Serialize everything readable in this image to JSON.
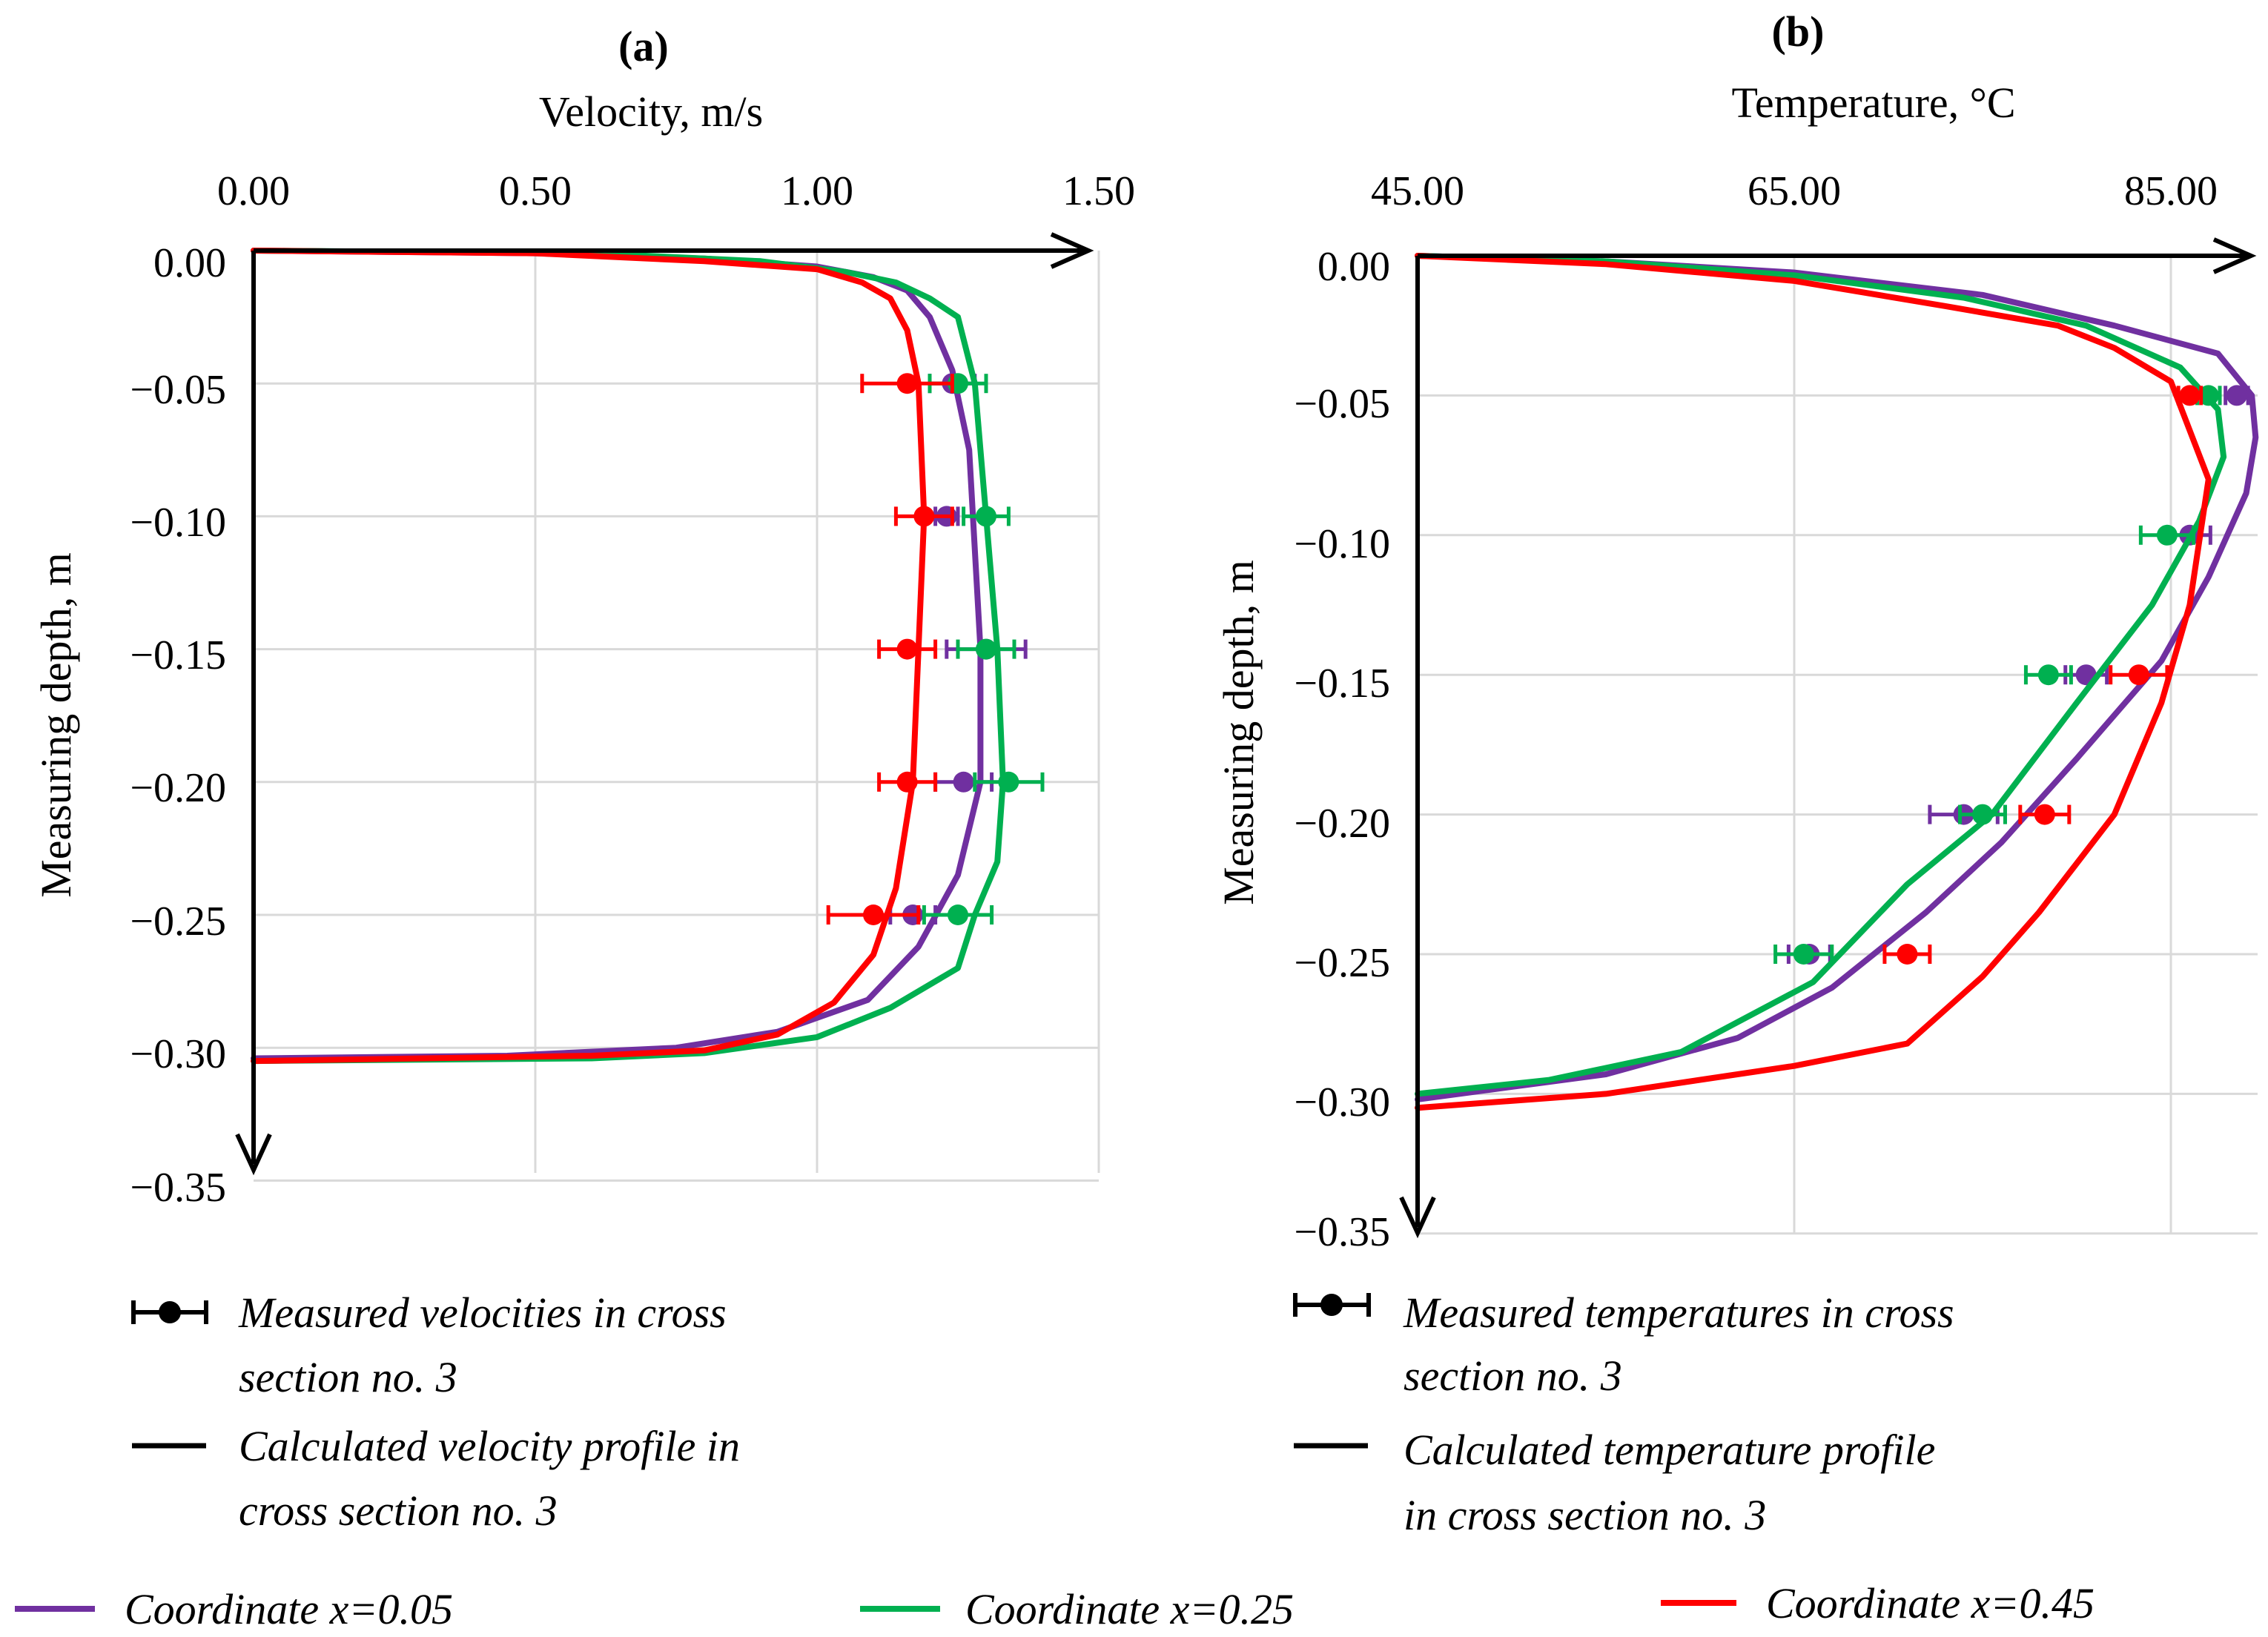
{
  "chart_data": [
    {
      "type": "line",
      "panel_label": "(a)",
      "title": "Velocity, m/s",
      "xlabel": "Velocity, m/s",
      "ylabel": "Measuring depth, m",
      "xlim": [
        0,
        1.5
      ],
      "ylim": [
        -0.35,
        0
      ],
      "x_ticks": [
        "0.00",
        "0.50",
        "1.00",
        "1.50"
      ],
      "y_ticks": [
        "0.00",
        "−0.05",
        "−0.10",
        "−0.15",
        "−0.20",
        "−0.25",
        "−0.30",
        "−0.35"
      ],
      "legend": {
        "measured_label": "Measured velocities in cross section no. 3",
        "calculated_label": "Calculated velocity profile in cross section no. 3"
      },
      "series": [
        {
          "name": "Coordinate x=0.05",
          "color": "#7030a0",
          "profile": [
            [
              0,
              0
            ],
            [
              0.5,
              -0.001
            ],
            [
              0.8,
              -0.003
            ],
            [
              1.0,
              -0.006
            ],
            [
              1.1,
              -0.01
            ],
            [
              1.16,
              -0.015
            ],
            [
              1.2,
              -0.025
            ],
            [
              1.24,
              -0.045
            ],
            [
              1.27,
              -0.075
            ],
            [
              1.29,
              -0.15
            ],
            [
              1.29,
              -0.2
            ],
            [
              1.25,
              -0.235
            ],
            [
              1.18,
              -0.262
            ],
            [
              1.09,
              -0.282
            ],
            [
              0.93,
              -0.294
            ],
            [
              0.75,
              -0.3
            ],
            [
              0.45,
              -0.303
            ],
            [
              0,
              -0.304
            ]
          ],
          "measured": [
            [
              1.24,
              -0.05,
              0.04
            ],
            [
              1.23,
              -0.1,
              0.02
            ],
            [
              1.3,
              -0.15,
              0.07
            ],
            [
              1.26,
              -0.2,
              0.05
            ],
            [
              1.17,
              -0.25,
              0.04
            ]
          ]
        },
        {
          "name": "Coordinate x=0.25",
          "color": "#00b050",
          "profile": [
            [
              0,
              0
            ],
            [
              0.6,
              -0.001
            ],
            [
              0.9,
              -0.004
            ],
            [
              1.05,
              -0.008
            ],
            [
              1.14,
              -0.012
            ],
            [
              1.2,
              -0.018
            ],
            [
              1.25,
              -0.025
            ],
            [
              1.28,
              -0.05
            ],
            [
              1.3,
              -0.1
            ],
            [
              1.32,
              -0.15
            ],
            [
              1.33,
              -0.2
            ],
            [
              1.32,
              -0.23
            ],
            [
              1.28,
              -0.25
            ],
            [
              1.25,
              -0.27
            ],
            [
              1.13,
              -0.285
            ],
            [
              1.0,
              -0.296
            ],
            [
              0.8,
              -0.302
            ],
            [
              0.6,
              -0.304
            ],
            [
              0,
              -0.305
            ]
          ],
          "measured": [
            [
              1.25,
              -0.05,
              0.05
            ],
            [
              1.3,
              -0.1,
              0.04
            ],
            [
              1.3,
              -0.15,
              0.05
            ],
            [
              1.34,
              -0.2,
              0.06
            ],
            [
              1.25,
              -0.25,
              0.06
            ]
          ]
        },
        {
          "name": "Coordinate x=0.45",
          "color": "#ff0000",
          "profile": [
            [
              0,
              0
            ],
            [
              0.5,
              -0.001
            ],
            [
              0.8,
              -0.004
            ],
            [
              1.0,
              -0.007
            ],
            [
              1.08,
              -0.012
            ],
            [
              1.13,
              -0.018
            ],
            [
              1.16,
              -0.03
            ],
            [
              1.18,
              -0.05
            ],
            [
              1.19,
              -0.1
            ],
            [
              1.18,
              -0.15
            ],
            [
              1.17,
              -0.2
            ],
            [
              1.14,
              -0.24
            ],
            [
              1.1,
              -0.265
            ],
            [
              1.03,
              -0.283
            ],
            [
              0.93,
              -0.295
            ],
            [
              0.8,
              -0.301
            ],
            [
              0.6,
              -0.303
            ],
            [
              0,
              -0.305
            ]
          ],
          "measured": [
            [
              1.16,
              -0.05,
              0.08
            ],
            [
              1.19,
              -0.1,
              0.05
            ],
            [
              1.16,
              -0.15,
              0.05
            ],
            [
              1.16,
              -0.2,
              0.05
            ],
            [
              1.1,
              -0.25,
              0.08
            ]
          ]
        }
      ]
    },
    {
      "type": "line",
      "panel_label": "(b)",
      "title": "Temperature, °C",
      "xlabel": "Temperature, °C",
      "ylabel": "Measuring depth, m",
      "xlim": [
        45,
        90
      ],
      "ylim": [
        -0.35,
        0
      ],
      "x_ticks": [
        "45.00",
        "65.00",
        "85.00"
      ],
      "y_ticks": [
        "0.00",
        "−0.05",
        "−0.10",
        "−0.15",
        "−0.20",
        "−0.25",
        "−0.30",
        "−0.35"
      ],
      "legend": {
        "measured_label": "Measured temperatures in cross section no. 3",
        "calculated_label": "Calculated temperature profile in cross section no. 3"
      },
      "series": [
        {
          "name": "Coordinate x=0.05",
          "color": "#7030a0",
          "profile": [
            [
              45,
              0
            ],
            [
              55,
              -0.002
            ],
            [
              65,
              -0.006
            ],
            [
              75,
              -0.014
            ],
            [
              82,
              -0.025
            ],
            [
              87.5,
              -0.035
            ],
            [
              89.3,
              -0.05
            ],
            [
              89.5,
              -0.065
            ],
            [
              89,
              -0.085
            ],
            [
              87,
              -0.115
            ],
            [
              84.5,
              -0.145
            ],
            [
              80,
              -0.18
            ],
            [
              76,
              -0.21
            ],
            [
              72,
              -0.235
            ],
            [
              67,
              -0.262
            ],
            [
              62,
              -0.28
            ],
            [
              55,
              -0.293
            ],
            [
              45,
              -0.302
            ]
          ],
          "measured": [
            [
              88.5,
              -0.05,
              0.6
            ],
            [
              86,
              -0.1,
              1.1
            ],
            [
              80.5,
              -0.15,
              1.1
            ],
            [
              74,
              -0.2,
              1.8
            ],
            [
              65.8,
              -0.25,
              1.1
            ]
          ]
        },
        {
          "name": "Coordinate x=0.25",
          "color": "#00b050",
          "profile": [
            [
              45,
              0
            ],
            [
              55,
              -0.002
            ],
            [
              65,
              -0.007
            ],
            [
              74,
              -0.015
            ],
            [
              80.5,
              -0.025
            ],
            [
              85.5,
              -0.04
            ],
            [
              87.5,
              -0.055
            ],
            [
              87.8,
              -0.072
            ],
            [
              86.5,
              -0.095
            ],
            [
              84,
              -0.125
            ],
            [
              80,
              -0.16
            ],
            [
              75.5,
              -0.2
            ],
            [
              71,
              -0.225
            ],
            [
              66,
              -0.26
            ],
            [
              59,
              -0.285
            ],
            [
              52,
              -0.295
            ],
            [
              45,
              -0.3
            ]
          ],
          "measured": [
            [
              87,
              -0.05,
              0.6
            ],
            [
              84.8,
              -0.1,
              1.4
            ],
            [
              78.5,
              -0.15,
              1.2
            ],
            [
              75,
              -0.2,
              1.2
            ],
            [
              65.5,
              -0.25,
              1.5
            ]
          ]
        },
        {
          "name": "Coordinate x=0.45",
          "color": "#ff0000",
          "profile": [
            [
              45,
              0
            ],
            [
              55,
              -0.003
            ],
            [
              65,
              -0.009
            ],
            [
              73,
              -0.018
            ],
            [
              79,
              -0.025
            ],
            [
              82,
              -0.033
            ],
            [
              85,
              -0.045
            ],
            [
              87,
              -0.08
            ],
            [
              86,
              -0.125
            ],
            [
              84.5,
              -0.16
            ],
            [
              82,
              -0.2
            ],
            [
              78,
              -0.235
            ],
            [
              75,
              -0.258
            ],
            [
              71,
              -0.282
            ],
            [
              65,
              -0.29
            ],
            [
              55,
              -0.3
            ],
            [
              45,
              -0.305
            ]
          ],
          "measured": [
            [
              86,
              -0.05,
              0.6
            ],
            [
              83.3,
              -0.15,
              1.5
            ],
            [
              78.3,
              -0.2,
              1.3
            ],
            [
              71,
              -0.25,
              1.2
            ]
          ]
        }
      ]
    }
  ],
  "legend_bottom": [
    {
      "label": "Coordinate x=0.05",
      "color": "#7030a0"
    },
    {
      "label": "Coordinate x=0.25",
      "color": "#00b050"
    },
    {
      "label": "Coordinate x=0.45",
      "color": "#ff0000"
    }
  ]
}
